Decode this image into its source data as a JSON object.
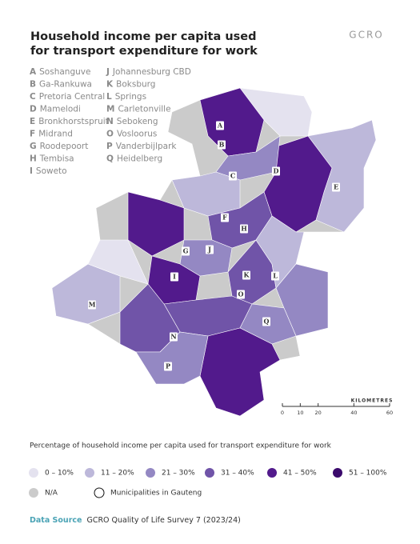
{
  "header": {
    "title_lines": [
      "Household income per capita used",
      "for transport expenditure for work"
    ],
    "logo": "GCRO"
  },
  "places": [
    {
      "letter": "A",
      "name": "Soshanguve"
    },
    {
      "letter": "B",
      "name": "Ga-Rankuwa"
    },
    {
      "letter": "C",
      "name": "Pretoria Central"
    },
    {
      "letter": "D",
      "name": "Mamelodi"
    },
    {
      "letter": "E",
      "name": "Bronkhorstspruit"
    },
    {
      "letter": "F",
      "name": "Midrand"
    },
    {
      "letter": "G",
      "name": "Roodepoort"
    },
    {
      "letter": "H",
      "name": "Tembisa"
    },
    {
      "letter": "I",
      "name": "Soweto"
    },
    {
      "letter": "J",
      "name": "Johannesburg CBD"
    },
    {
      "letter": "K",
      "name": "Boksburg"
    },
    {
      "letter": "L",
      "name": "Springs"
    },
    {
      "letter": "M",
      "name": "Carletonville"
    },
    {
      "letter": "N",
      "name": "Sebokeng"
    },
    {
      "letter": "O",
      "name": "Vosloorus"
    },
    {
      "letter": "P",
      "name": "Vanderbijlpark"
    },
    {
      "letter": "Q",
      "name": "Heidelberg"
    }
  ],
  "scale": {
    "title": "KILOMETRES",
    "ticks": [
      0,
      10,
      20,
      40,
      60
    ]
  },
  "legend": {
    "title": "Percentage of household income per capita used for transport expenditure for work",
    "items": [
      {
        "label": "0 – 10%",
        "color": "#e4e2ef"
      },
      {
        "label": "11 – 20%",
        "color": "#bdb8da"
      },
      {
        "label": "21 – 30%",
        "color": "#9488c3"
      },
      {
        "label": "31 – 40%",
        "color": "#7054a8"
      },
      {
        "label": "41 – 50%",
        "color": "#521a8c"
      },
      {
        "label": "51 – 100%",
        "color": "#3b0a6c"
      },
      {
        "label": "N/A",
        "color": "#cbcbcb"
      },
      {
        "label": "Municipalities in Gauteng",
        "color": "#ffffff"
      }
    ]
  },
  "source": {
    "label": "Data Source",
    "text": "GCRO Quality of Life Survey 7 (2023/24)"
  }
}
